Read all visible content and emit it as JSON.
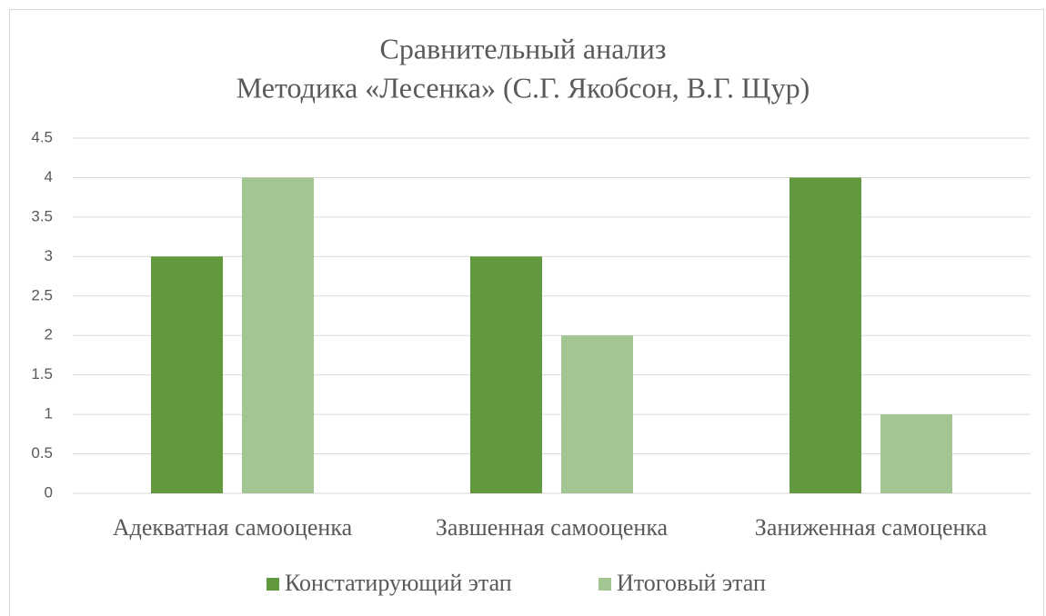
{
  "chart_data": {
    "type": "bar",
    "title": "Сравнительный анализ",
    "subtitle": "Методика «Лесенка» (С.Г. Якобсон, В.Г. Щур)",
    "categories": [
      "Адекватная самооценка",
      "Завшенная самооценка",
      "Заниженная самоценка"
    ],
    "series": [
      {
        "name": "Констатирующий этап",
        "color": "#62993e",
        "values": [
          3,
          3,
          4
        ]
      },
      {
        "name": "Итоговый этап",
        "color": "#a3c591",
        "values": [
          4,
          2,
          1
        ]
      }
    ],
    "ylim": [
      0,
      4.5
    ],
    "yticks": [
      0,
      0.5,
      1,
      1.5,
      2,
      2.5,
      3,
      3.5,
      4,
      4.5
    ],
    "grid": true,
    "legend": "bottom"
  }
}
